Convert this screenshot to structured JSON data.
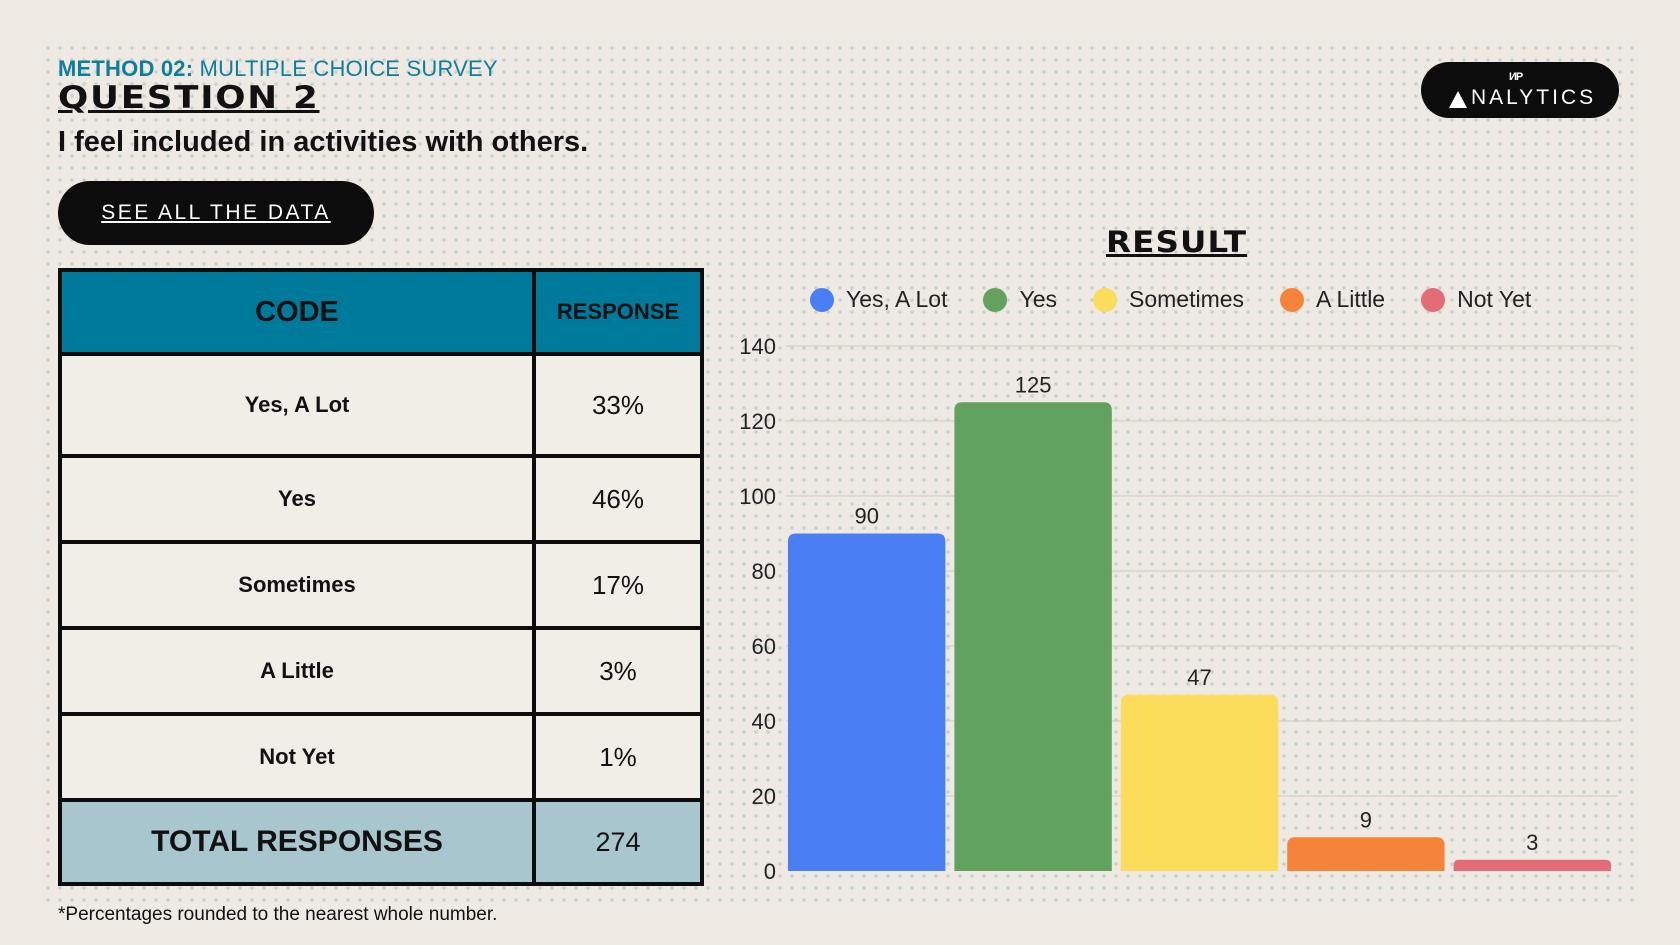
{
  "header": {
    "method_label": "METHOD 02:",
    "method_name": " MULTIPLE CHOICE SURVEY",
    "question_title": "QUESTION 2",
    "question_text": "I feel included in activities with others.",
    "button_label": "SEE ALL THE DATA"
  },
  "logo": {
    "text": "NALYTICS",
    "mark": "ИP"
  },
  "table": {
    "headers": {
      "code": "CODE",
      "response": "RESPONSE"
    },
    "rows": [
      {
        "code": "Yes, A Lot",
        "response": "33%"
      },
      {
        "code": "Yes",
        "response": "46%"
      },
      {
        "code": "Sometimes",
        "response": "17%"
      },
      {
        "code": "A Little",
        "response": "3%"
      },
      {
        "code": "Not Yet",
        "response": "1%"
      }
    ],
    "total": {
      "label": "TOTAL RESPONSES",
      "value": "274"
    }
  },
  "footnote": "*Percentages rounded to the nearest whole number.",
  "chart_data": {
    "type": "bar",
    "title": "RESULT",
    "categories": [
      "Yes, A Lot",
      "Yes",
      "Sometimes",
      "A Little",
      "Not Yet"
    ],
    "values": [
      90,
      125,
      47,
      9,
      3
    ],
    "colors": [
      "#4a7ef3",
      "#61a25f",
      "#fbdc5b",
      "#f6833a",
      "#e46c76"
    ],
    "legend": [
      "Yes, A Lot",
      "Yes",
      "Sometimes",
      "A Little",
      "Not Yet"
    ],
    "yticks": [
      0,
      20,
      40,
      60,
      80,
      100,
      120,
      140
    ],
    "ylim": [
      0,
      140
    ],
    "xlabel": "",
    "ylabel": ""
  }
}
